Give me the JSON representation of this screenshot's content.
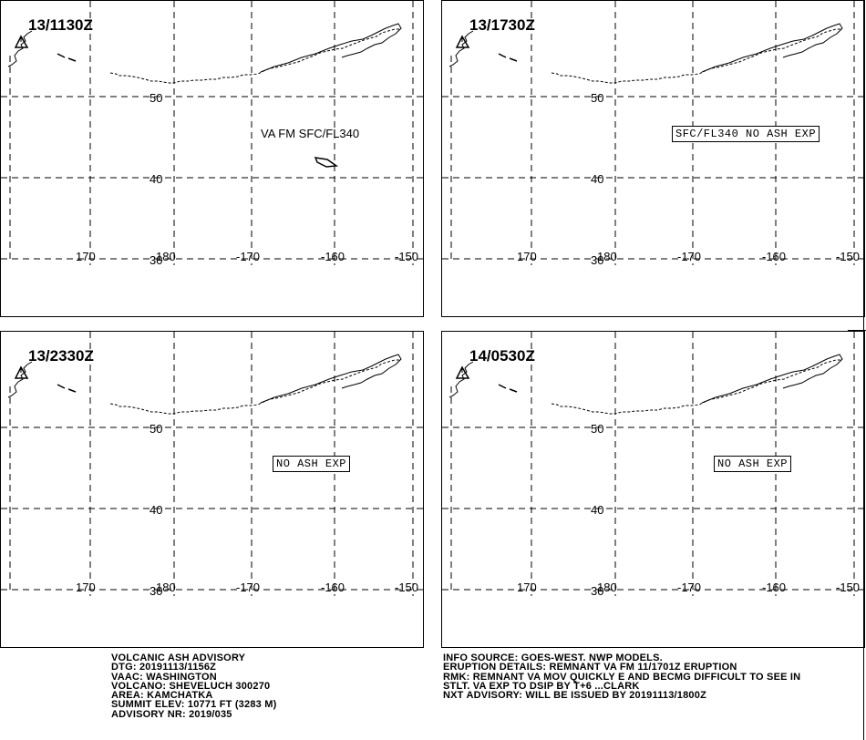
{
  "panels": [
    {
      "time": "13/1130Z",
      "plain_annotation": "VA FM SFC/FL340",
      "boxed_annotation": "",
      "has_ash_polygon": true
    },
    {
      "time": "13/1730Z",
      "plain_annotation": "",
      "boxed_annotation": "SFC/FL340 NO ASH EXP",
      "has_ash_polygon": false
    },
    {
      "time": "13/2330Z",
      "plain_annotation": "",
      "boxed_annotation": "NO ASH EXP",
      "has_ash_polygon": false
    },
    {
      "time": "14/0530Z",
      "plain_annotation": "",
      "boxed_annotation": "NO ASH EXP",
      "has_ash_polygon": false
    }
  ],
  "lat_labels": [
    "50",
    "40",
    "30"
  ],
  "lon_labels": [
    "170",
    "180",
    "-170",
    "-160",
    "-150"
  ],
  "volcano_symbol": "volcano-triangle-icon",
  "advisory_left": [
    "VOLCANIC ASH ADVISORY",
    "DTG: 20191113/1156Z",
    "VAAC: WASHINGTON",
    "VOLCANO: SHEVELUCH 300270",
    "AREA: KAMCHATKA",
    "SUMMIT ELEV: 10771 FT (3283 M)",
    "ADVISORY NR: 2019/035"
  ],
  "advisory_right": [
    "INFO SOURCE: GOES-WEST. NWP MODELS.",
    "ERUPTION DETAILS: REMNANT VA FM 11/1701Z ERUPTION",
    "RMK: REMNANT VA MOV QUICKLY E AND BECMG DIFFICULT TO SEE IN",
    "STLT. VA EXP TO DSIP BY T+6 ...CLARK",
    "NXT ADVISORY: WILL BE ISSUED BY 20191113/1800Z"
  ]
}
